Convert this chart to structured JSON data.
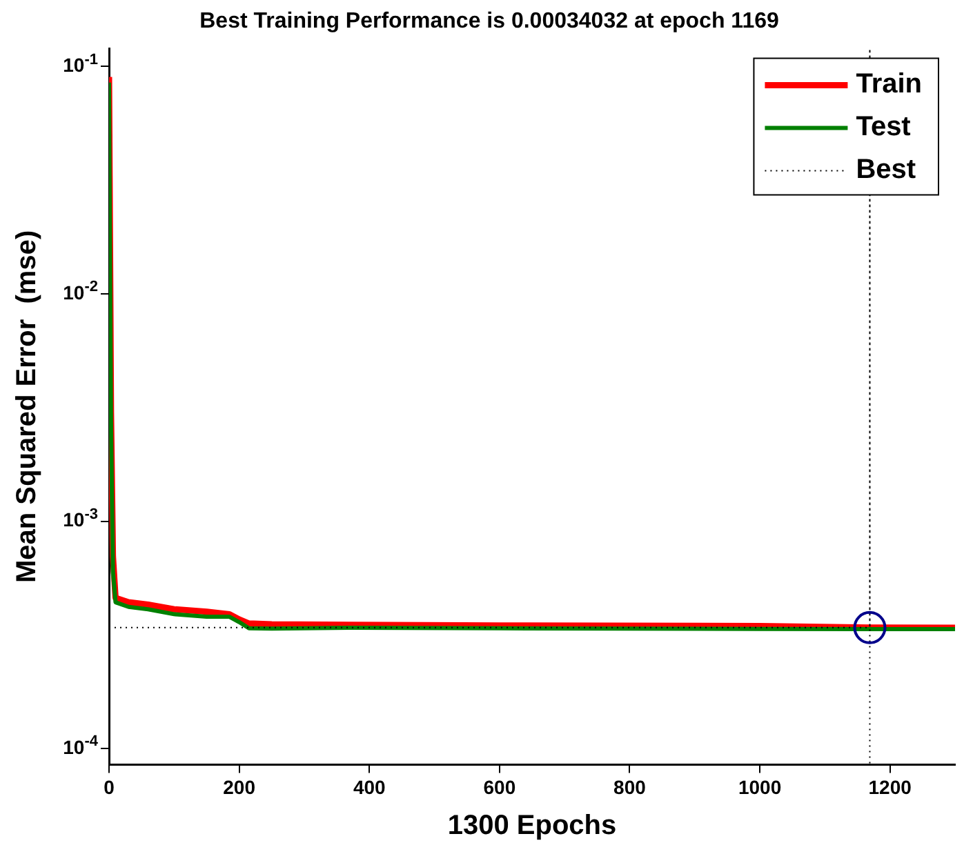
{
  "chart_data": {
    "type": "line",
    "title": "Best Training Performance is 0.00034032 at epoch 1169",
    "xlabel": "1300 Epochs",
    "ylabel": "Mean Squared Error  (mse)",
    "log": "y",
    "grid": false,
    "legend": "top right",
    "xlim": [
      0,
      1300
    ],
    "xticks": [
      0,
      200,
      400,
      600,
      800,
      1000,
      1200
    ],
    "ylim": [
      8.5e-05,
      0.12
    ],
    "yticks": [
      {
        "value": 0.0001,
        "label": "10$^{-4}$"
      },
      {
        "value": 0.001,
        "label": "10$^{-3}$"
      },
      {
        "value": 0.01,
        "label": "10$^{-2}$"
      },
      {
        "value": 0.1,
        "label": "10$^{-1}$"
      }
    ],
    "series": [
      {
        "name": "Train",
        "color": "#ff0000",
        "marker": "none",
        "x": [
          0,
          3,
          6,
          10,
          30,
          60,
          100,
          150,
          185,
          200,
          215,
          250,
          370,
          600,
          1000,
          1169,
          1300
        ],
        "values": [
          0.09,
          0.003,
          0.0007,
          0.00046,
          0.00044,
          0.00043,
          0.00041,
          0.0004,
          0.00039,
          0.00037,
          0.000355,
          0.000352,
          0.00035,
          0.000348,
          0.000346,
          0.00034032,
          0.00034
        ]
      },
      {
        "name": "Test",
        "color": "#008000",
        "marker": "none",
        "x": [
          0,
          3,
          6,
          10,
          30,
          60,
          100,
          150,
          185,
          200,
          215,
          250,
          370,
          600,
          1000,
          1300
        ],
        "values": [
          0.085,
          0.0028,
          0.0006,
          0.00044,
          0.00042,
          0.00041,
          0.00039,
          0.00038,
          0.00038,
          0.00036,
          0.000338,
          0.000337,
          0.00034,
          0.000338,
          0.000336,
          0.000335
        ]
      },
      {
        "name": "Best",
        "color": "#000000",
        "line_style": "dotted",
        "marker": "none",
        "x": [
          0,
          1169,
          1169,
          1169
        ],
        "values": [
          0.00034032,
          0.00034032,
          0.12,
          8.5e-05
        ]
      },
      {
        "type": "scatter",
        "color": "#00008b",
        "marker": "circle",
        "x": [
          1169
        ],
        "values": [
          0.00034032
        ]
      }
    ]
  }
}
